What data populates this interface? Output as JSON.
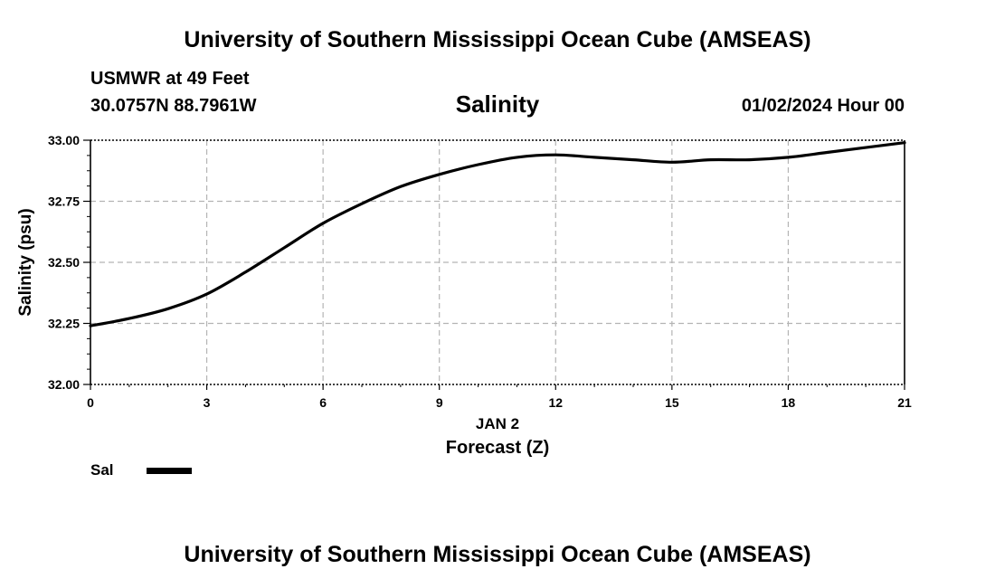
{
  "header": {
    "title": "University of Southern Mississippi Ocean Cube (AMSEAS)",
    "station": "USMWR at 49 Feet",
    "coordinates": "30.0757N  88.7961W",
    "datetime": "01/02/2024 Hour 00"
  },
  "footer": {
    "title": "University of Southern Mississippi Ocean Cube (AMSEAS)"
  },
  "legend": {
    "label": "Sal",
    "color": "#000000"
  },
  "chart_data": {
    "type": "line",
    "title": "Salinity",
    "xlabel": "Forecast (Z)",
    "xlabel_date": "JAN 2",
    "ylabel": "Salinity (psu)",
    "xlim": [
      0,
      21
    ],
    "ylim": [
      32.0,
      33.0
    ],
    "x_ticks": [
      0,
      3,
      6,
      9,
      12,
      15,
      18,
      21
    ],
    "x_tick_labels": [
      "0",
      "3",
      "6",
      "9",
      "12",
      "15",
      "18",
      "21"
    ],
    "y_ticks": [
      32.0,
      32.25,
      32.5,
      32.75,
      33.0
    ],
    "y_tick_labels": [
      "32.00",
      "32.25",
      "32.50",
      "32.75",
      "33.00"
    ],
    "grid": true,
    "series": [
      {
        "name": "Sal",
        "color": "#000000",
        "x": [
          0,
          1,
          2,
          3,
          4,
          5,
          6,
          7,
          8,
          9,
          10,
          11,
          12,
          13,
          14,
          15,
          16,
          17,
          18,
          19,
          20,
          21
        ],
        "values": [
          32.24,
          32.27,
          32.31,
          32.37,
          32.46,
          32.56,
          32.66,
          32.74,
          32.81,
          32.86,
          32.9,
          32.93,
          32.94,
          32.93,
          32.92,
          32.91,
          32.92,
          32.92,
          32.93,
          32.95,
          32.97,
          32.99
        ]
      }
    ]
  }
}
